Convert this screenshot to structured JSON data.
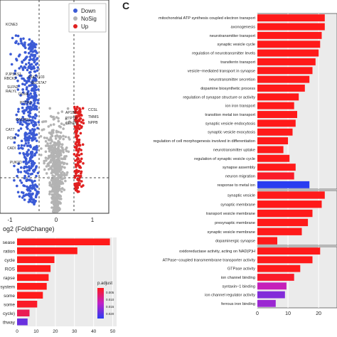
{
  "panel_c_label": "C",
  "chart_data": [
    {
      "id": "volcano",
      "type": "scatter",
      "xlabel": "og2 (FoldChange)",
      "xticks": [
        "-1",
        "0",
        "1"
      ],
      "legend": {
        "placement": "top-right",
        "entries": [
          {
            "name": "Down",
            "color": "#3b5bd6"
          },
          {
            "name": "NoSig",
            "color": "#b3b3b3"
          },
          {
            "name": "Up",
            "color": "#e02020"
          }
        ]
      },
      "down_labels": [
        "KCNE3",
        "PJPSKS1",
        "RBCK3",
        "SLFN2",
        "RALYL",
        "DOX4",
        "DUCY103",
        "SLC17A7",
        "PTCH3",
        "CACHD1",
        "CAT7",
        "PCK1",
        "CADI",
        "PUK1D"
      ],
      "up_labels": [
        "CCSL",
        "AP1B2",
        "PTPTD",
        "CENPC",
        "TMMS",
        "NPPB"
      ],
      "thresholds": {
        "fc": 0.4
      }
    },
    {
      "id": "bottom_left",
      "type": "bar",
      "categories": [
        "sease",
        "ration",
        "cycle",
        "ROS",
        "rapse",
        "system",
        "some",
        "some",
        "cycle)",
        "thway"
      ],
      "values": [
        48.5,
        31.5,
        19.5,
        17.5,
        16.5,
        15.5,
        13.5,
        10.5,
        6.5,
        5.5
      ],
      "p_adjust": [
        0.001,
        0.001,
        0.001,
        0.001,
        0.001,
        0.001,
        0.001,
        0.002,
        0.005,
        0.02
      ],
      "xticks": [
        0,
        10,
        20,
        30,
        40,
        50
      ],
      "xlim": [
        0,
        52
      ],
      "colorbar": {
        "title": "p.adjust",
        "ticks": [
          "0.005",
          "0.010",
          "0.015",
          "0.020"
        ]
      }
    },
    {
      "id": "go_bp",
      "type": "bar",
      "categories": [
        "mitochondrial ATP synthesis coupled electron transport",
        "axonogenesis",
        "neurotransmitter transport",
        "synaptic vesicle cycle",
        "regulation of neurotransmitter levels",
        "transferrin transport",
        "vesicle−mediated transport in synapse",
        "neurotransmitter secretion",
        "dopamine biosynthetic process",
        "regulation of synapse structure or activity",
        "ion iron transport",
        "transition metal ion transport",
        "synaptic vesicle endocytosis",
        "synaptic vesicle exocytosis",
        "regulation of cell morphogenesis involved in differentiation",
        "neurotransmitter uptake",
        "regulation of synaptic vesicle cycle",
        "synapse assembly",
        "neuron migration",
        "response to metal ion"
      ],
      "values": [
        22.0,
        22.0,
        21.0,
        20.5,
        20.0,
        19.0,
        18.0,
        17.0,
        15.5,
        13.5,
        12.0,
        13.0,
        12.5,
        11.5,
        10.0,
        8.5,
        10.5,
        12.5,
        12.0,
        17.0
      ],
      "p_adjust": [
        0.001,
        0.001,
        0.001,
        0.001,
        0.001,
        0.001,
        0.001,
        0.001,
        0.001,
        0.001,
        0.001,
        0.001,
        0.001,
        0.001,
        0.001,
        0.001,
        0.001,
        0.001,
        0.002,
        0.025
      ]
    },
    {
      "id": "go_cc",
      "type": "bar",
      "categories": [
        "synaptic vesicle",
        "synaptic membrane",
        "transport vesicle membrane",
        "presynaptic membrane",
        "synaptic vesicle membrane",
        "dopaminergic synapse"
      ],
      "values": [
        22.0,
        21.0,
        18.0,
        16.5,
        14.5,
        6.5
      ],
      "p_adjust": [
        0.001,
        0.001,
        0.001,
        0.001,
        0.001,
        0.001
      ]
    },
    {
      "id": "go_mf",
      "type": "bar",
      "categories": [
        "oxidoreductase activity, acting on NAD(P)H",
        "ATPase−coupled transmembrane transporter activity",
        "GTPase activity",
        "ion channel binding",
        "syntaxin−1 binding",
        "ion channel regulator activity",
        "ferrous iron binding"
      ],
      "values": [
        20.5,
        18.0,
        14.0,
        12.0,
        9.5,
        9.0,
        6.0
      ],
      "p_adjust": [
        0.001,
        0.001,
        0.001,
        0.002,
        0.012,
        0.018,
        0.016
      ],
      "xticks": [
        0,
        10,
        20
      ],
      "xlim": [
        0,
        26
      ]
    }
  ]
}
